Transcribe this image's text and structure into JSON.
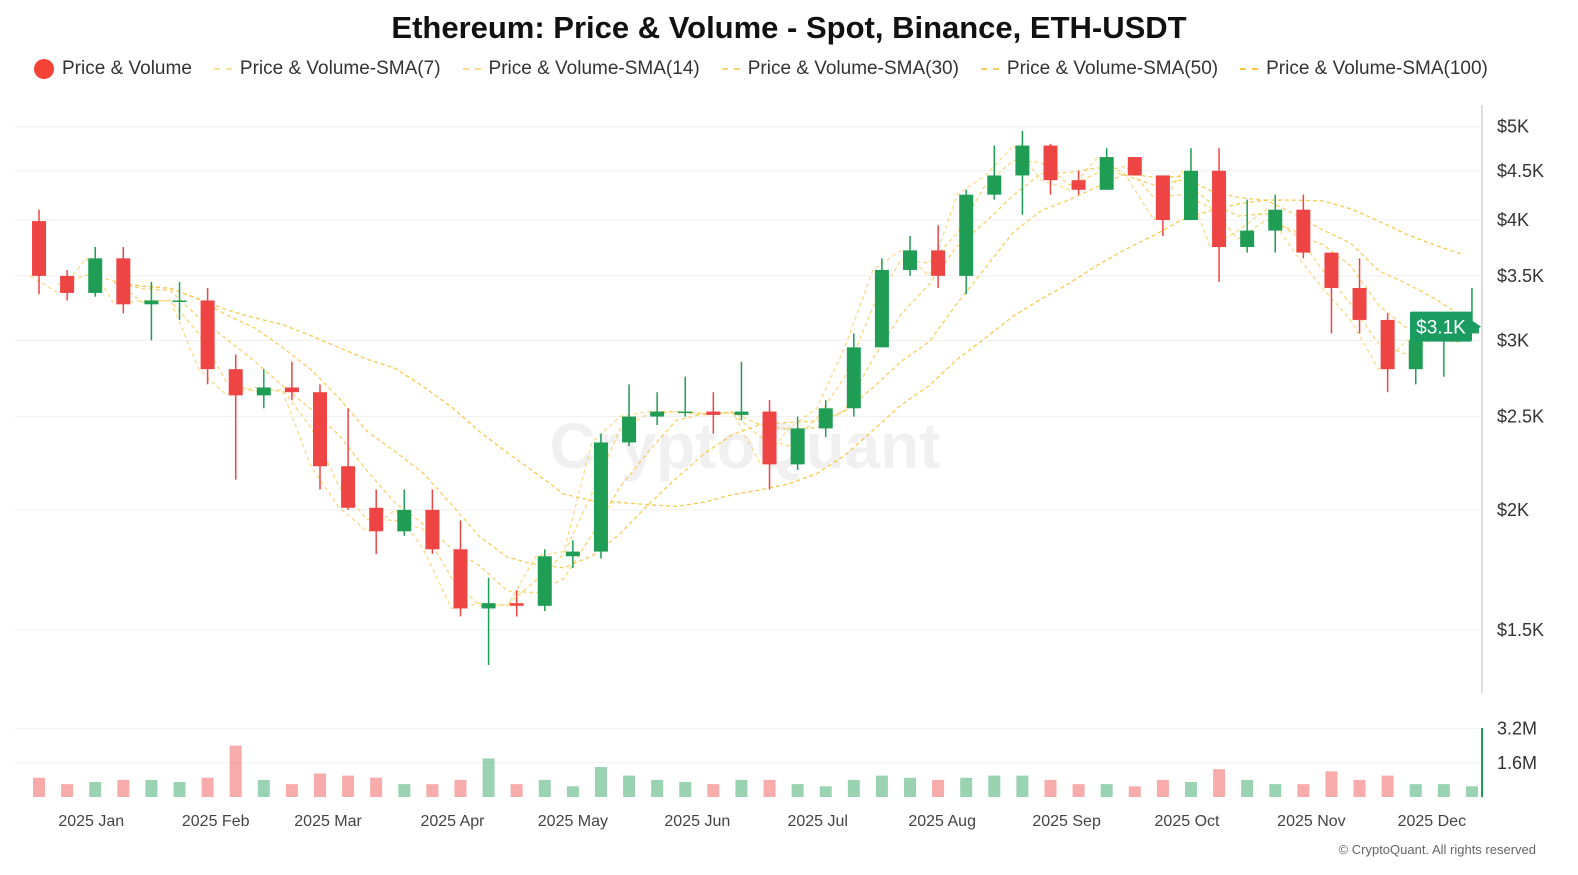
{
  "chart_data": {
    "type": "candlestick",
    "title": "Ethereum: Price & Volume - Spot, Binance, ETH-USDT",
    "legend": [
      "Price & Volume",
      "Price & Volume-SMA(7)",
      "Price & Volume-SMA(14)",
      "Price & Volume-SMA(30)",
      "Price & Volume-SMA(50)",
      "Price & Volume-SMA(100)"
    ],
    "legend_placement": "top",
    "sma_periods": [
      7,
      14,
      30,
      50,
      100
    ],
    "y_scale": "log",
    "ylim": [
      1300,
      5330
    ],
    "y_ticks": [
      {
        "v": 5000,
        "label": "$5K"
      },
      {
        "v": 4500,
        "label": "$4.5K"
      },
      {
        "v": 4000,
        "label": "$4K"
      },
      {
        "v": 3500,
        "label": "$3.5K"
      },
      {
        "v": 3000,
        "label": "$3K"
      },
      {
        "v": 2500,
        "label": "$2.5K"
      },
      {
        "v": 2000,
        "label": "$2K"
      },
      {
        "v": 1500,
        "label": "$1.5K"
      }
    ],
    "last_price_label": "$3.1K",
    "volume_ticks": [
      {
        "v": 3.2,
        "label": "3.2M"
      },
      {
        "v": 1.6,
        "label": "1.6M"
      }
    ],
    "volume_unit": "M",
    "xlim": [
      "2024-12-13",
      "2025-12-13"
    ],
    "x_ticks": [
      {
        "date": "2025-01-01",
        "label": "2025 Jan"
      },
      {
        "date": "2025-02-01",
        "label": "2025 Feb"
      },
      {
        "date": "2025-03-01",
        "label": "2025 Mar"
      },
      {
        "date": "2025-04-01",
        "label": "2025 Apr"
      },
      {
        "date": "2025-05-01",
        "label": "2025 May"
      },
      {
        "date": "2025-06-01",
        "label": "2025 Jun"
      },
      {
        "date": "2025-07-01",
        "label": "2025 Jul"
      },
      {
        "date": "2025-08-01",
        "label": "2025 Aug"
      },
      {
        "date": "2025-09-01",
        "label": "2025 Sep"
      },
      {
        "date": "2025-10-01",
        "label": "2025 Oct"
      },
      {
        "date": "2025-11-01",
        "label": "2025 Nov"
      },
      {
        "date": "2025-12-01",
        "label": "2025 Dec"
      }
    ],
    "grid": true,
    "colors": {
      "up": "#1f9d55",
      "down": "#ef4444",
      "sma": "#f5c542",
      "last_label": "#1a9b5f"
    },
    "candles": [
      [
        "2024-12-16",
        3990,
        4100,
        3350,
        3500,
        0.9
      ],
      [
        "2024-12-23",
        3500,
        3550,
        3300,
        3360,
        0.6
      ],
      [
        "2024-12-30",
        3360,
        3750,
        3330,
        3650,
        0.7
      ],
      [
        "2025-01-06",
        3650,
        3750,
        3200,
        3270,
        0.8
      ],
      [
        "2025-01-13",
        3270,
        3450,
        3000,
        3300,
        0.8
      ],
      [
        "2025-01-20",
        3300,
        3450,
        3150,
        3300,
        0.7
      ],
      [
        "2025-01-27",
        3300,
        3400,
        2700,
        2800,
        0.9
      ],
      [
        "2025-02-03",
        2800,
        2900,
        2150,
        2630,
        2.4
      ],
      [
        "2025-02-10",
        2630,
        2800,
        2550,
        2680,
        0.8
      ],
      [
        "2025-02-17",
        2680,
        2850,
        2600,
        2650,
        0.6
      ],
      [
        "2025-02-24",
        2650,
        2700,
        2100,
        2220,
        1.1
      ],
      [
        "2025-03-03",
        2220,
        2550,
        2000,
        2010,
        1.0
      ],
      [
        "2025-03-10",
        2010,
        2100,
        1800,
        1900,
        0.9
      ],
      [
        "2025-03-17",
        1900,
        2100,
        1880,
        2000,
        0.6
      ],
      [
        "2025-03-24",
        2000,
        2100,
        1800,
        1820,
        0.6
      ],
      [
        "2025-03-31",
        1820,
        1950,
        1550,
        1580,
        0.8
      ],
      [
        "2025-04-07",
        1580,
        1700,
        1380,
        1600,
        1.8
      ],
      [
        "2025-04-14",
        1600,
        1650,
        1550,
        1590,
        0.6
      ],
      [
        "2025-04-21",
        1590,
        1820,
        1570,
        1790,
        0.8
      ],
      [
        "2025-04-28",
        1790,
        1860,
        1740,
        1810,
        0.5
      ],
      [
        "2025-05-05",
        1810,
        2400,
        1780,
        2350,
        1.4
      ],
      [
        "2025-05-12",
        2350,
        2700,
        2330,
        2500,
        1.0
      ],
      [
        "2025-05-19",
        2500,
        2650,
        2450,
        2530,
        0.8
      ],
      [
        "2025-05-26",
        2530,
        2750,
        2500,
        2530,
        0.7
      ],
      [
        "2025-06-02",
        2530,
        2650,
        2400,
        2510,
        0.6
      ],
      [
        "2025-06-09",
        2510,
        2850,
        2480,
        2530,
        0.8
      ],
      [
        "2025-06-16",
        2530,
        2600,
        2100,
        2230,
        0.8
      ],
      [
        "2025-06-23",
        2230,
        2500,
        2200,
        2430,
        0.6
      ],
      [
        "2025-06-30",
        2430,
        2600,
        2380,
        2550,
        0.5
      ],
      [
        "2025-07-07",
        2550,
        3050,
        2500,
        2950,
        0.8
      ],
      [
        "2025-07-14",
        2950,
        3650,
        2950,
        3550,
        1.0
      ],
      [
        "2025-07-21",
        3550,
        3850,
        3500,
        3720,
        0.9
      ],
      [
        "2025-07-28",
        3720,
        3950,
        3400,
        3500,
        0.8
      ],
      [
        "2025-08-04",
        3500,
        4300,
        3350,
        4250,
        0.9
      ],
      [
        "2025-08-11",
        4250,
        4780,
        4200,
        4450,
        1.0
      ],
      [
        "2025-08-18",
        4450,
        4950,
        4050,
        4780,
        1.0
      ],
      [
        "2025-08-25",
        4780,
        4800,
        4250,
        4400,
        0.8
      ],
      [
        "2025-09-01",
        4400,
        4500,
        4250,
        4300,
        0.6
      ],
      [
        "2025-09-08",
        4300,
        4750,
        4300,
        4650,
        0.6
      ],
      [
        "2025-09-15",
        4650,
        4650,
        4450,
        4450,
        0.5
      ],
      [
        "2025-09-22",
        4450,
        4450,
        3850,
        4000,
        0.8
      ],
      [
        "2025-09-29",
        4000,
        4750,
        4000,
        4500,
        0.7
      ],
      [
        "2025-10-06",
        4500,
        4750,
        3450,
        3750,
        1.3
      ],
      [
        "2025-10-13",
        3750,
        4200,
        3700,
        3900,
        0.8
      ],
      [
        "2025-10-20",
        3900,
        4250,
        3700,
        4100,
        0.6
      ],
      [
        "2025-10-27",
        4100,
        4250,
        3650,
        3700,
        0.6
      ],
      [
        "2025-11-03",
        3700,
        3700,
        3050,
        3400,
        1.2
      ],
      [
        "2025-11-10",
        3400,
        3650,
        3050,
        3150,
        0.8
      ],
      [
        "2025-11-17",
        3150,
        3200,
        2650,
        2800,
        1.0
      ],
      [
        "2025-11-24",
        2800,
        3100,
        2700,
        3000,
        0.6
      ],
      [
        "2025-12-01",
        3000,
        3200,
        2750,
        3050,
        0.6
      ],
      [
        "2025-12-08",
        3050,
        3400,
        3050,
        3100,
        0.5
      ]
    ]
  },
  "watermark": "CryptoQuant",
  "footer": "© CryptoQuant. All rights reserved"
}
